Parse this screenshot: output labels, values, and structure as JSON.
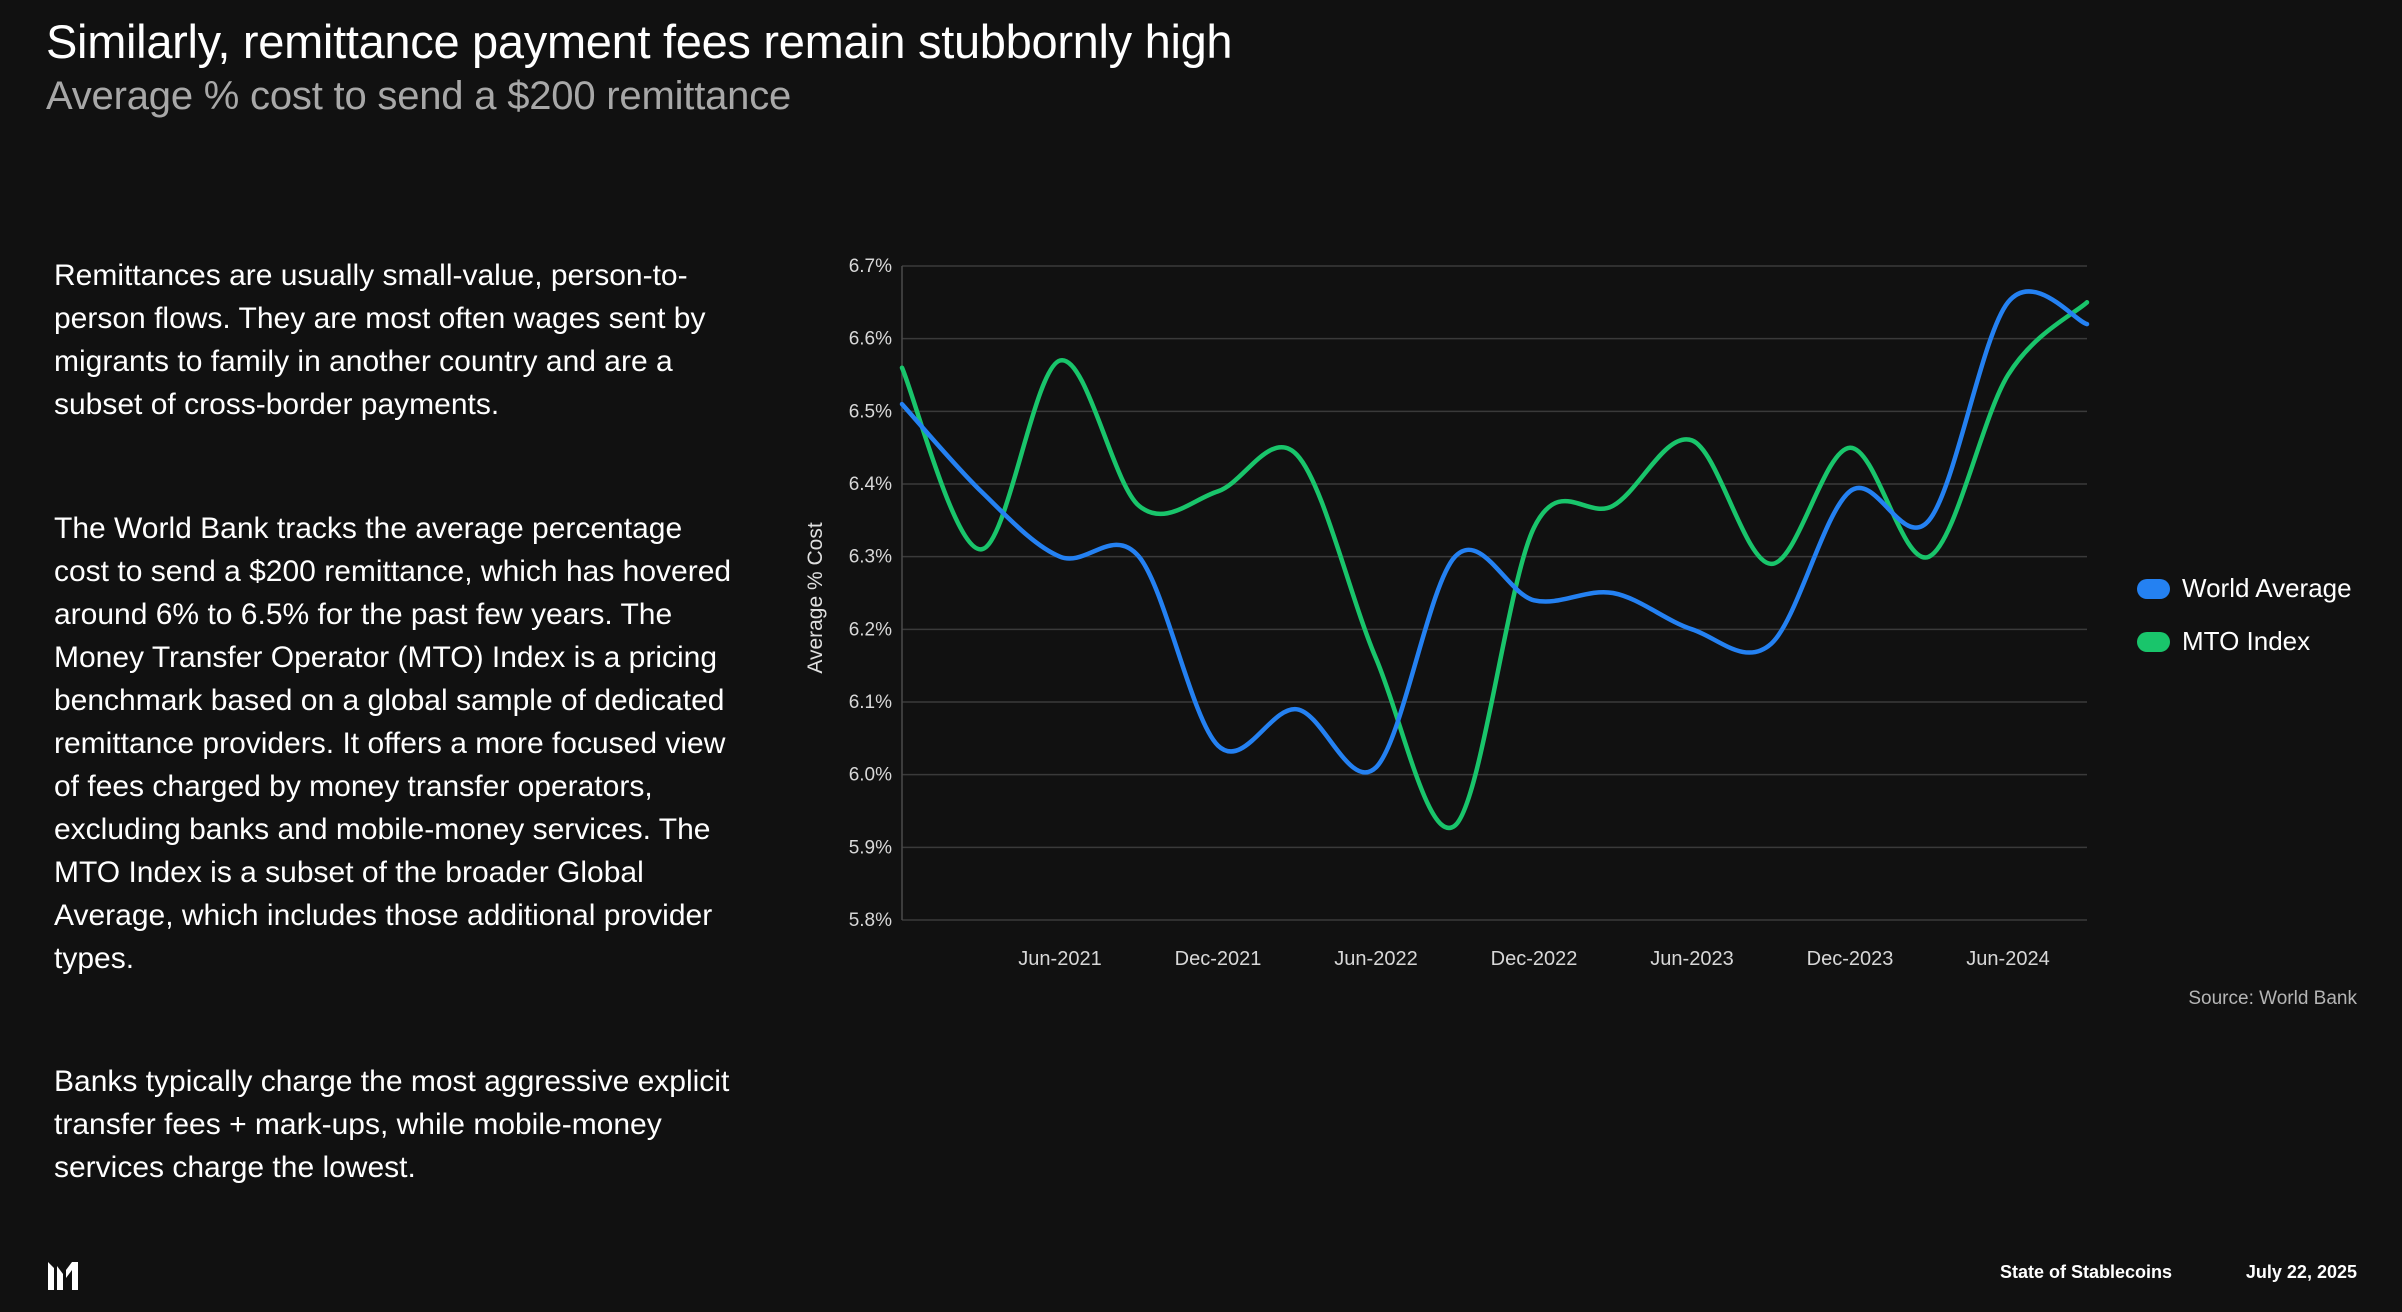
{
  "header": {
    "title": "Similarly, remittance payment fees remain stubbornly high",
    "subtitle": "Average % cost to send a $200 remittance"
  },
  "body": {
    "paragraphs": [
      "Remittances are usually small-value, person-to-person flows. They are most often wages sent by migrants to family in another country and are a subset of cross-border payments.",
      "The World Bank tracks the average percentage cost to send a $200 remittance, which has hovered around 6% to 6.5% for the past few years. The Money Transfer Operator (MTO) Index is a pricing benchmark based on a global sample of dedicated remittance providers. It offers a more focused view of fees charged by money transfer operators, excluding banks and mobile-money services. The MTO Index is a subset of the broader Global Average, which includes those additional provider types.",
      "Banks typically charge the most aggressive explicit transfer fees + mark-ups, while mobile-money services charge the lowest."
    ]
  },
  "chart_data": {
    "type": "line",
    "title": "Average % cost to send a $200 remittance",
    "xlabel": "",
    "ylabel": "Average % Cost",
    "ylim": [
      5.8,
      6.7
    ],
    "yticks": [
      "5.8%",
      "5.9%",
      "6.0%",
      "6.1%",
      "6.2%",
      "6.3%",
      "6.4%",
      "6.5%",
      "6.6%",
      "6.7%"
    ],
    "x": [
      "Q4-2020",
      "Q1-2021",
      "Q2-2021",
      "Q3-2021",
      "Q4-2021",
      "Q1-2022",
      "Q2-2022",
      "Q3-2022",
      "Q4-2022",
      "Q1-2023",
      "Q2-2023",
      "Q3-2023",
      "Q4-2023",
      "Q1-2024",
      "Q2-2024",
      "Q3-2024"
    ],
    "xtick_labels": [
      {
        "index": 2,
        "label": "Jun-2021"
      },
      {
        "index": 4,
        "label": "Dec-2021"
      },
      {
        "index": 6,
        "label": "Jun-2022"
      },
      {
        "index": 8,
        "label": "Dec-2022"
      },
      {
        "index": 10,
        "label": "Jun-2023"
      },
      {
        "index": 12,
        "label": "Dec-2023"
      },
      {
        "index": 14,
        "label": "Jun-2024"
      }
    ],
    "grid": true,
    "legend_position": "right",
    "series": [
      {
        "name": "World Average",
        "color": "#2481f2",
        "values": [
          6.51,
          6.39,
          6.3,
          6.3,
          6.04,
          6.09,
          6.01,
          6.3,
          6.24,
          6.25,
          6.2,
          6.18,
          6.39,
          6.35,
          6.65,
          6.62
        ]
      },
      {
        "name": "MTO Index",
        "color": "#19c56b",
        "values": [
          6.56,
          6.31,
          6.57,
          6.37,
          6.39,
          6.44,
          6.16,
          5.93,
          6.34,
          6.37,
          6.46,
          6.29,
          6.45,
          6.3,
          6.55,
          6.65
        ]
      }
    ],
    "source": "Source: World Bank"
  },
  "footer": {
    "report_name": "State of Stablecoins",
    "date": "July 22, 2025",
    "logo_icon": "brand-logo-icon"
  }
}
